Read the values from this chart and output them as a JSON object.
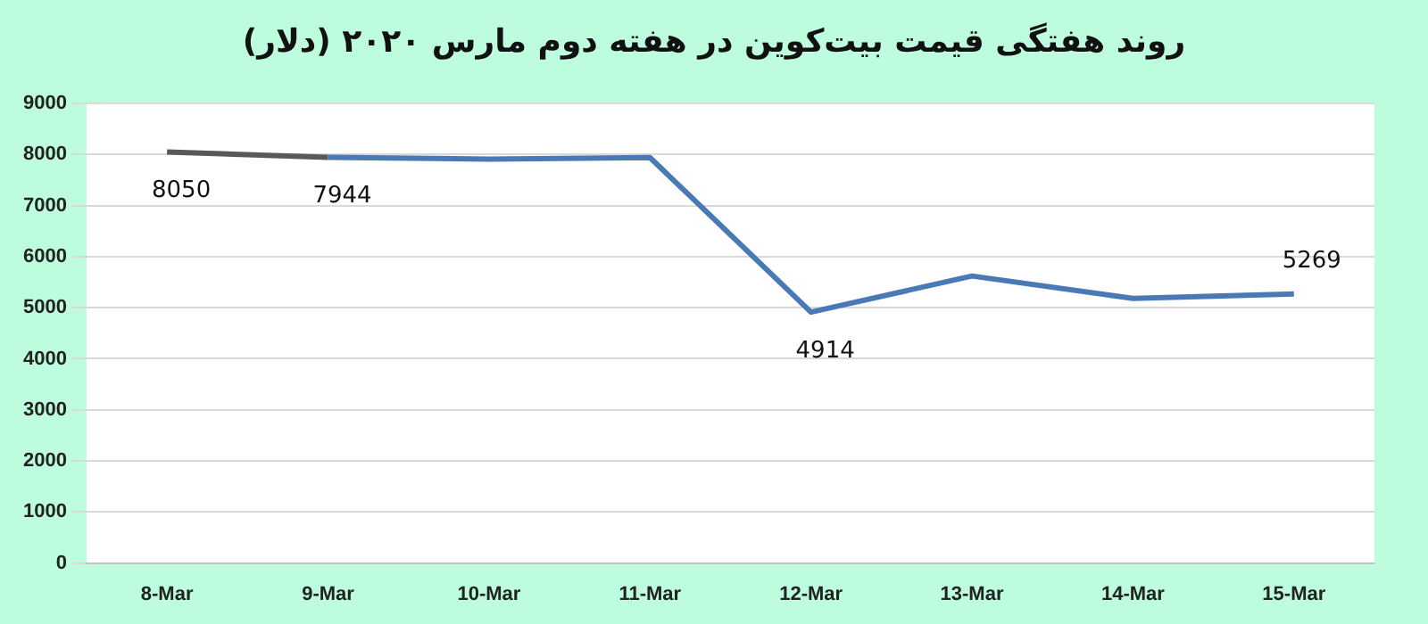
{
  "chart_data": {
    "type": "line",
    "title": "روند هفتگی قیمت بیت‌کوین در هفته دوم مارس ۲۰۲۰ (دلار)",
    "categories": [
      "8-Mar",
      "9-Mar",
      "10-Mar",
      "11-Mar",
      "12-Mar",
      "13-Mar",
      "14-Mar",
      "15-Mar"
    ],
    "series": [
      {
        "color": "#595959",
        "values": [
          8050,
          7944,
          null,
          null,
          null,
          null,
          null,
          null
        ],
        "value_labels": [
          "8050",
          null,
          null,
          null,
          null,
          null,
          null,
          null
        ]
      },
      {
        "color": "#4a7ab5",
        "values": [
          null,
          7944,
          7910,
          7940,
          4914,
          5620,
          5180,
          5269
        ],
        "value_labels": [
          null,
          "7944",
          null,
          null,
          "4914",
          null,
          null,
          "5269"
        ]
      }
    ],
    "ylim": [
      0,
      9000
    ],
    "yticks": [
      0,
      1000,
      2000,
      3000,
      4000,
      5000,
      6000,
      7000,
      8000,
      9000
    ],
    "grid": "y",
    "legend": false,
    "marker": "none",
    "line_style": "solid"
  }
}
